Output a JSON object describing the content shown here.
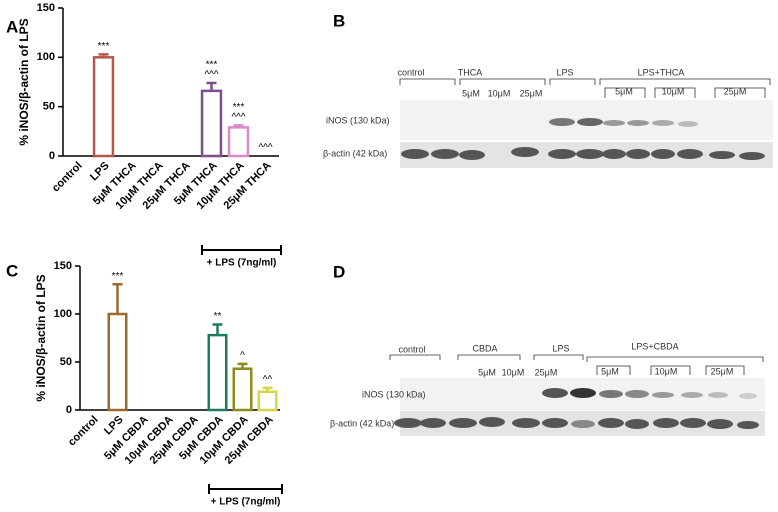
{
  "chart_data": [
    {
      "type": "bar",
      "panel": "A",
      "ylabel": "% iNOS/β-actin of LPS",
      "categories": [
        "control",
        "LPS",
        "5μM THCA",
        "10μM THCA",
        "25μM THCA",
        "5μM THCA",
        "10μM THCA",
        "25μM THCA"
      ],
      "values": [
        0,
        100,
        0,
        0,
        0,
        66,
        29,
        0
      ],
      "errors": [
        null,
        3,
        null,
        null,
        null,
        8,
        2,
        null
      ],
      "colors": [
        null,
        "#b5574b",
        null,
        null,
        null,
        "#7d4e8c",
        "#d98bc9",
        null
      ],
      "annotations": [
        null,
        [
          "***"
        ],
        null,
        null,
        null,
        [
          "***",
          "^^^"
        ],
        [
          "***",
          "^^^"
        ],
        [
          "^^^"
        ]
      ],
      "group_label": "+ LPS (7ng/ml)",
      "ylim": [
        0,
        150
      ],
      "yticks": [
        0,
        50,
        100,
        150
      ]
    },
    {
      "type": "bar",
      "panel": "C",
      "ylabel": "% iNOS/β-actin of LPS",
      "categories": [
        "control",
        "LPS",
        "5μM CBDA",
        "10μM CBDA",
        "25μM CBDA",
        "5μM CBDA",
        "10μM CBDA",
        "25μM CBDA"
      ],
      "values": [
        0,
        100,
        0,
        0,
        0,
        78,
        43,
        19
      ],
      "errors": [
        null,
        31,
        null,
        null,
        null,
        11,
        5,
        4
      ],
      "colors": [
        null,
        "#9c6b2c",
        null,
        null,
        null,
        "#1f7a5c",
        "#8c8c1f",
        "#d6d64a"
      ],
      "annotations": [
        null,
        [
          "***"
        ],
        null,
        null,
        null,
        [
          "**"
        ],
        [
          "^"
        ],
        [
          "^^"
        ]
      ],
      "group_label": "+ LPS (7ng/ml)",
      "ylim": [
        0,
        150
      ],
      "yticks": [
        0,
        50,
        100,
        150
      ]
    }
  ],
  "blots": [
    {
      "panel": "B",
      "groups": [
        "control",
        "THCA",
        "LPS",
        "LPS+THCA"
      ],
      "doses": [
        "5μM",
        "10μM",
        "25μM"
      ],
      "doses_lps": [
        "5μM",
        "10μM",
        "25μM"
      ],
      "rows": [
        "iNOS (130 kDa)",
        "β-actin (42 kDa)"
      ]
    },
    {
      "panel": "D",
      "groups": [
        "control",
        "CBDA",
        "LPS",
        "LPS+CBDA"
      ],
      "doses": [
        "5μM",
        "10μM",
        "25μM"
      ],
      "doses_lps": [
        "5μM",
        "10μM",
        "25μM"
      ],
      "rows": [
        "iNOS (130 kDa)",
        "β-actin (42 kDa)"
      ]
    }
  ]
}
